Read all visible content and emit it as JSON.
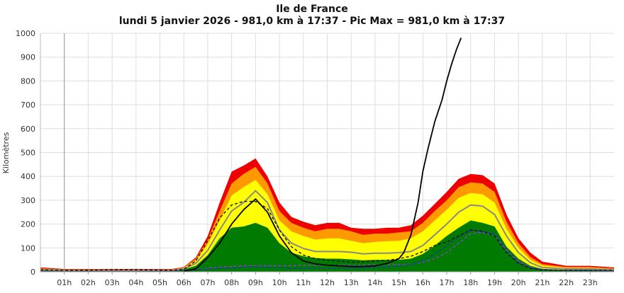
{
  "chart_data": {
    "type": "area",
    "title": "Ile de France",
    "subtitle": "lundi 5 janvier 2026 - 981,0 km à 17:37 - Pic Max = 981,0 km à 17:37",
    "ylabel": "Kilomètres",
    "ylim": [
      0,
      1000
    ],
    "xlim": [
      0,
      24
    ],
    "y_ticks": [
      "0",
      "100",
      "200",
      "300",
      "400",
      "500",
      "600",
      "700",
      "800",
      "900",
      "1000"
    ],
    "x_ticks": [
      "01h",
      "02h",
      "03h",
      "04h",
      "05h",
      "06h",
      "07h",
      "08h",
      "09h",
      "10h",
      "11h",
      "12h",
      "13h",
      "14h",
      "15h",
      "16h",
      "17h",
      "18h",
      "19h",
      "20h",
      "21h",
      "22h",
      "23h"
    ],
    "grid": true,
    "colors": {
      "red": "#ee0000",
      "orange": "#ff9900",
      "yellow": "#ffff00",
      "green": "#007a00",
      "median": "#888888",
      "today": "#000000",
      "dashed_black": "#111111",
      "dashed_purple": "#8844cc",
      "dashed_blue": "#2233bb"
    },
    "x": [
      0,
      1,
      2,
      3,
      4,
      5,
      5.5,
      6,
      6.5,
      7,
      7.5,
      8,
      8.5,
      9,
      9.5,
      10,
      10.5,
      11,
      11.5,
      12,
      12.5,
      13,
      13.5,
      14,
      14.5,
      15,
      15.5,
      16,
      16.5,
      17,
      17.5,
      18,
      18.5,
      19,
      19.5,
      20,
      20.5,
      21,
      22,
      23,
      24
    ],
    "bands": [
      {
        "name": "red",
        "values": [
          18,
          12,
          12,
          12,
          12,
          12,
          12,
          20,
          60,
          150,
          290,
          420,
          445,
          475,
          400,
          290,
          230,
          210,
          195,
          205,
          205,
          185,
          180,
          180,
          185,
          185,
          195,
          235,
          285,
          335,
          390,
          410,
          405,
          370,
          240,
          140,
          80,
          42,
          25,
          25,
          18
        ]
      },
      {
        "name": "orange",
        "values": [
          14,
          10,
          10,
          10,
          10,
          10,
          10,
          18,
          55,
          135,
          255,
          370,
          410,
          440,
          370,
          255,
          205,
          185,
          170,
          180,
          180,
          170,
          155,
          160,
          160,
          165,
          170,
          205,
          255,
          300,
          355,
          375,
          370,
          335,
          210,
          120,
          62,
          32,
          20,
          20,
          14
        ]
      },
      {
        "name": "yellow",
        "values": [
          10,
          8,
          8,
          8,
          8,
          8,
          8,
          15,
          45,
          115,
          215,
          320,
          355,
          385,
          325,
          215,
          170,
          150,
          135,
          140,
          140,
          130,
          120,
          125,
          128,
          130,
          140,
          170,
          215,
          260,
          310,
          330,
          325,
          290,
          180,
          100,
          50,
          26,
          16,
          16,
          11
        ]
      },
      {
        "name": "green",
        "values": [
          5,
          5,
          5,
          5,
          5,
          5,
          5,
          10,
          25,
          70,
          140,
          185,
          190,
          205,
          185,
          120,
          80,
          65,
          58,
          55,
          55,
          52,
          48,
          50,
          50,
          50,
          55,
          75,
          110,
          150,
          185,
          215,
          205,
          190,
          105,
          55,
          25,
          12,
          8,
          8,
          6
        ]
      }
    ],
    "series": [
      {
        "name": "median",
        "style": "solid",
        "values": [
          8,
          6,
          6,
          6,
          6,
          6,
          6,
          12,
          35,
          90,
          175,
          255,
          290,
          340,
          290,
          175,
          120,
          98,
          85,
          85,
          85,
          82,
          75,
          78,
          78,
          80,
          85,
          110,
          155,
          200,
          250,
          280,
          275,
          240,
          150,
          80,
          38,
          18,
          12,
          12,
          8
        ]
      },
      {
        "name": "today",
        "style": "solid",
        "x": [
          6,
          6.5,
          7,
          7.5,
          8,
          8.5,
          9,
          9.5,
          10,
          10.5,
          11,
          11.5,
          12,
          12.5,
          13,
          13.5,
          14,
          14.5,
          15,
          15.2,
          15.5,
          15.8,
          16,
          16.2,
          16.5,
          16.8,
          17,
          17.2,
          17.4,
          17.6
        ],
        "values": [
          2,
          12,
          60,
          120,
          200,
          260,
          305,
          250,
          150,
          80,
          45,
          33,
          28,
          25,
          22,
          22,
          25,
          35,
          55,
          80,
          155,
          290,
          420,
          510,
          630,
          720,
          800,
          870,
          930,
          981
        ]
      },
      {
        "name": "dashed_black",
        "style": "dashed",
        "values": [
          8,
          6,
          6,
          8,
          8,
          6,
          6,
          10,
          45,
          130,
          225,
          280,
          295,
          295,
          265,
          175,
          105,
          70,
          55,
          48,
          45,
          40,
          42,
          45,
          48,
          55,
          65,
          85,
          110,
          125,
          150,
          175,
          170,
          150,
          80,
          35,
          15,
          8,
          6,
          6,
          6
        ]
      },
      {
        "name": "dashed_purple",
        "style": "dashed",
        "values": [
          4,
          4,
          4,
          4,
          4,
          4,
          4,
          5,
          8,
          15,
          20,
          22,
          25,
          25,
          25,
          25,
          25,
          28,
          28,
          28,
          28,
          28,
          28,
          30,
          30,
          30,
          32,
          40,
          55,
          80,
          120,
          160,
          165,
          150,
          90,
          45,
          20,
          10,
          5,
          5,
          4
        ]
      },
      {
        "name": "dashed_blue",
        "style": "dashed",
        "values": [
          6,
          6,
          6,
          6,
          8,
          8,
          6,
          6,
          8,
          12,
          15,
          15,
          20,
          22,
          18,
          18,
          15,
          15,
          15,
          15,
          15,
          15,
          15,
          18,
          20,
          25,
          30,
          45,
          75,
          110,
          145,
          175,
          170,
          160,
          95,
          40,
          15,
          8,
          6,
          6,
          6
        ]
      }
    ]
  }
}
